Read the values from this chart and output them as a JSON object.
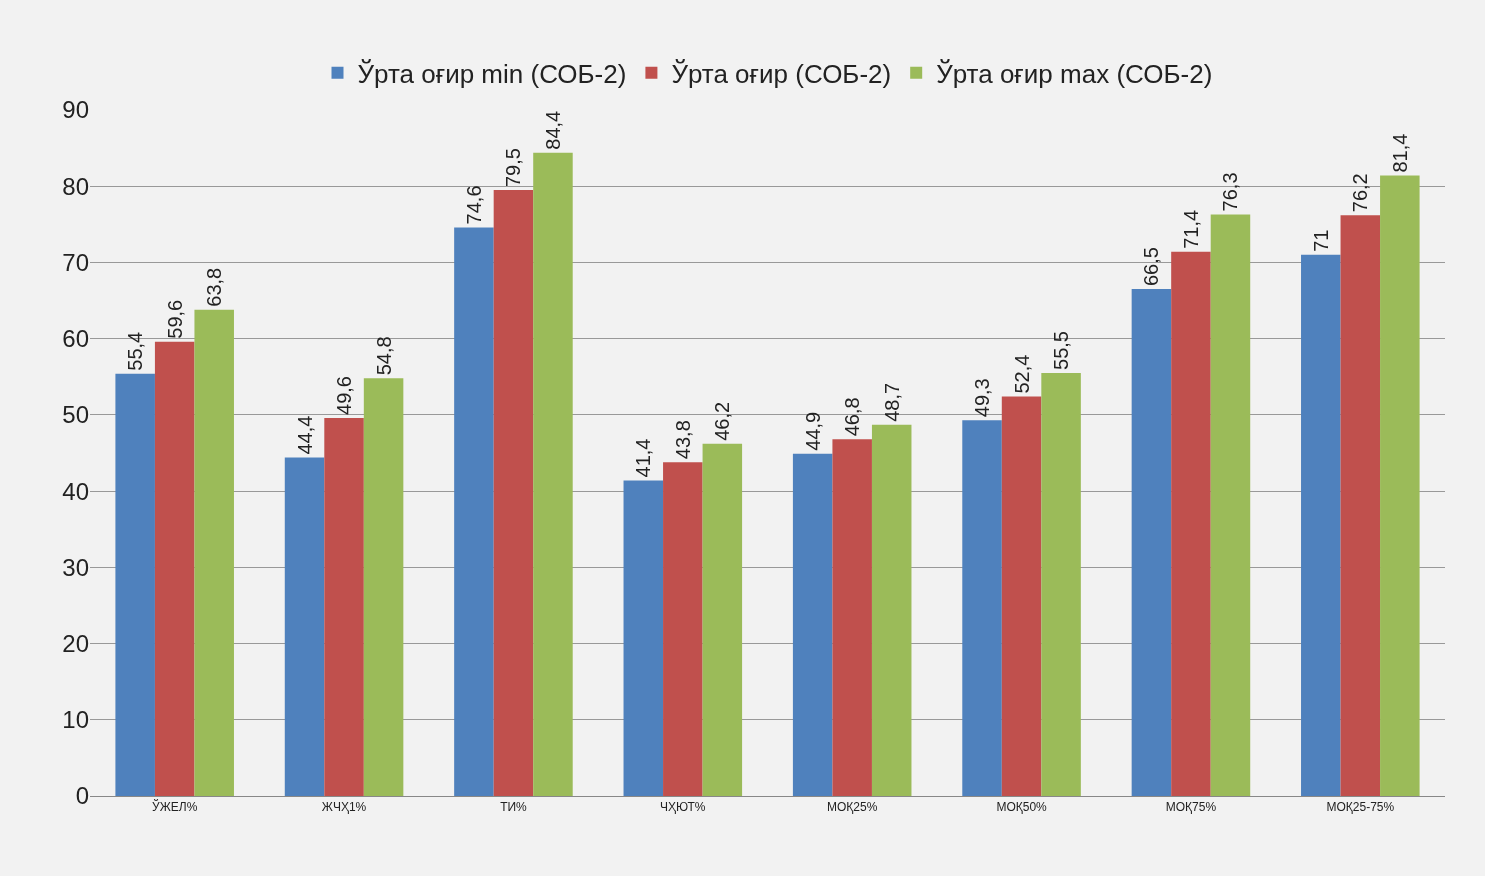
{
  "chart_data": {
    "type": "bar",
    "categories": [
      "ЎЖЕЛ%",
      "ЖЧҲ1%",
      "ТИ%",
      "ЧҲЮТ%",
      "МОҚ25%",
      "МОҚ50%",
      "МОҚ75%",
      "МОҚ25-75%"
    ],
    "series": [
      {
        "name": "Ўрта оғир min (СОБ-2)",
        "color": "#4f81bd",
        "values": [
          55.4,
          44.4,
          74.6,
          41.4,
          44.9,
          49.3,
          66.5,
          71
        ],
        "value_labels": [
          "55,4",
          "44,4",
          "74,6",
          "41,4",
          "44,9",
          "49,3",
          "66,5",
          "71"
        ]
      },
      {
        "name": "Ўрта оғир (СОБ-2)",
        "color": "#c0504d",
        "values": [
          59.6,
          49.6,
          79.5,
          43.8,
          46.8,
          52.4,
          71.4,
          76.2
        ],
        "value_labels": [
          "59,6",
          "49,6",
          "79,5",
          "43,8",
          "46,8",
          "52,4",
          "71,4",
          "76,2"
        ]
      },
      {
        "name": "Ўрта оғир max (СОБ-2)",
        "color": "#9bbb59",
        "values": [
          63.8,
          54.8,
          84.4,
          46.2,
          48.7,
          55.5,
          76.3,
          81.4
        ],
        "value_labels": [
          "63,8",
          "54,8",
          "84,4",
          "46,2",
          "48,7",
          "55,5",
          "76,3",
          "81,4"
        ]
      }
    ],
    "ylim": [
      0,
      90
    ],
    "yticks": [
      0,
      10,
      20,
      30,
      40,
      50,
      60,
      70,
      80,
      90
    ],
    "grid": "y",
    "legend": "top"
  }
}
